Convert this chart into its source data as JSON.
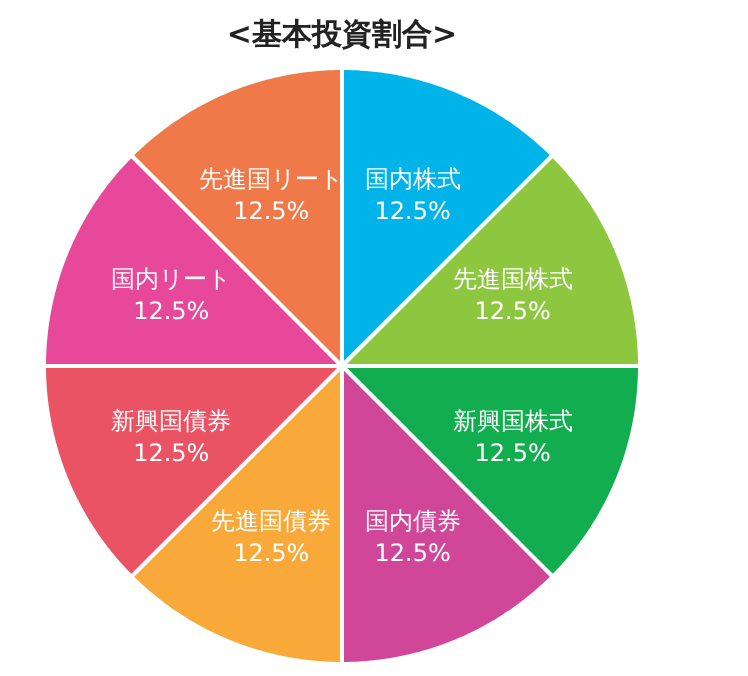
{
  "chart_data": {
    "type": "pie",
    "title": "<基本投資割合>",
    "categories": [
      "国内株式",
      "先進国株式",
      "新興国株式",
      "国内債券",
      "先進国債券",
      "新興国債券",
      "国内リート",
      "先進国リート"
    ],
    "values": [
      12.5,
      12.5,
      12.5,
      12.5,
      12.5,
      12.5,
      12.5,
      12.5
    ],
    "value_labels": [
      "12.5%",
      "12.5%",
      "12.5%",
      "12.5%",
      "12.5%",
      "12.5%",
      "12.5%",
      "12.5%"
    ],
    "colors": [
      "#00b4ea",
      "#8dc63f",
      "#12ad4f",
      "#d0479a",
      "#f8a93a",
      "#ea5364",
      "#e8489a",
      "#f0794a"
    ]
  }
}
